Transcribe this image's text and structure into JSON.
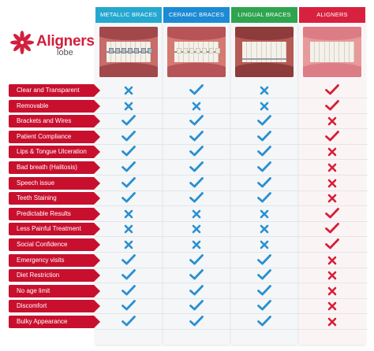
{
  "logo": {
    "brand_name": "Aligners",
    "brand_sub": "lobe"
  },
  "columns": [
    {
      "label": "METALLIC BRACES",
      "color": "#25a8d0",
      "photo": "metallic-braces-smile"
    },
    {
      "label": "CERAMIC BRACES",
      "color": "#1c8ad4",
      "photo": "ceramic-braces-smile"
    },
    {
      "label": "LINGUAL BRACES",
      "color": "#2ea44f",
      "photo": "lingual-braces-teeth"
    },
    {
      "label": "ALIGNERS",
      "color": "#d8213f",
      "photo": "aligners-smile"
    }
  ],
  "colors": {
    "label_bg": "#c8102e",
    "check": "#2a8fd0",
    "cross": "#2a8fd0",
    "aligner_check": "#d61f36",
    "aligner_cross": "#d61f36"
  },
  "rows": [
    {
      "label": "Clear and Transparent",
      "marks": [
        "cross",
        "check",
        "cross",
        "check"
      ]
    },
    {
      "label": "Removable",
      "marks": [
        "cross",
        "cross",
        "cross",
        "check"
      ]
    },
    {
      "label": "Brackets and Wires",
      "marks": [
        "check",
        "check",
        "check",
        "cross"
      ]
    },
    {
      "label": "Patient Compliance",
      "marks": [
        "check",
        "check",
        "check",
        "check"
      ]
    },
    {
      "label": "Lips & Tongue Ulceration",
      "marks": [
        "check",
        "check",
        "check",
        "cross"
      ]
    },
    {
      "label": "Bad breath (Halitosis)",
      "marks": [
        "check",
        "check",
        "check",
        "cross"
      ]
    },
    {
      "label": "Speech issue",
      "marks": [
        "check",
        "check",
        "check",
        "cross"
      ]
    },
    {
      "label": "Teeth Staining",
      "marks": [
        "check",
        "check",
        "check",
        "cross"
      ]
    },
    {
      "label": "Predictable Results",
      "marks": [
        "cross",
        "cross",
        "cross",
        "check"
      ]
    },
    {
      "label": "Less Painful Treatment",
      "marks": [
        "cross",
        "cross",
        "cross",
        "check"
      ]
    },
    {
      "label": "Social Confidence",
      "marks": [
        "cross",
        "cross",
        "cross",
        "check"
      ]
    },
    {
      "label": "Emergency visits",
      "marks": [
        "check",
        "check",
        "check",
        "cross"
      ]
    },
    {
      "label": "Diet Restriction",
      "marks": [
        "check",
        "check",
        "check",
        "cross"
      ]
    },
    {
      "label": "No age limit",
      "marks": [
        "check",
        "check",
        "check",
        "cross"
      ]
    },
    {
      "label": "Discomfort",
      "marks": [
        "check",
        "check",
        "check",
        "cross"
      ]
    },
    {
      "label": "Bulky Appearance",
      "marks": [
        "check",
        "check",
        "check",
        "cross"
      ]
    }
  ]
}
